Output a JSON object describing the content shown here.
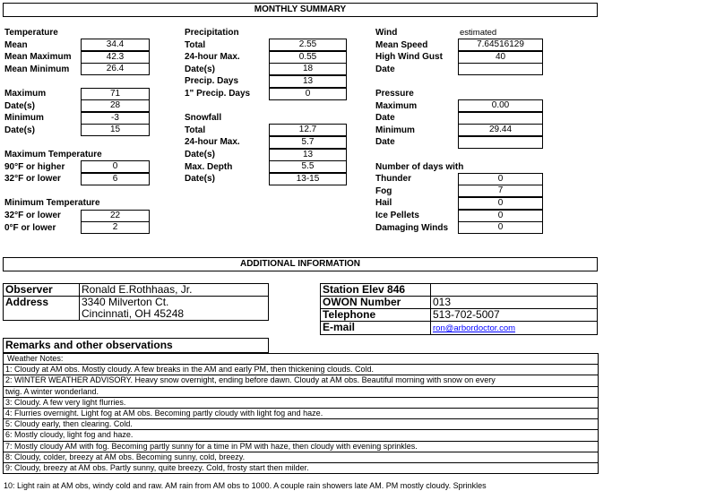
{
  "summary_title": "MONTHLY SUMMARY",
  "columns": [
    {
      "rows": [
        {
          "heading": "Temperature"
        },
        {
          "label": "Mean",
          "value": "34.4"
        },
        {
          "label": "Mean Maximum",
          "value": "42.3"
        },
        {
          "label": "Mean Minimum",
          "value": "26.4"
        },
        null,
        {
          "label": "Maximum",
          "value": "71"
        },
        {
          "label": "Date(s)",
          "value": "28"
        },
        {
          "label": "Minimum",
          "value": "-3"
        },
        {
          "label": "Date(s)",
          "value": "15"
        },
        null,
        {
          "heading": "Maximum Temperature"
        },
        {
          "label": "90°F or higher",
          "value": "0"
        },
        {
          "label": "32°F or lower",
          "value": "6"
        },
        null,
        {
          "heading": "Minimum Temperature"
        },
        {
          "label": "32°F or lower",
          "value": "22"
        },
        {
          "label": "0°F or lower",
          "value": "2"
        }
      ]
    },
    {
      "rows": [
        {
          "heading": "Precipitation"
        },
        {
          "label": "Total",
          "value": "2.55"
        },
        {
          "label": "24-hour Max.",
          "value": "0.55"
        },
        {
          "label": "Date(s)",
          "value": "18"
        },
        {
          "label": "Precip. Days",
          "value": "13"
        },
        {
          "label": "1\" Precip. Days",
          "value": "0"
        },
        null,
        {
          "heading": "Snowfall"
        },
        {
          "label": "Total",
          "value": "12.7"
        },
        {
          "label": "24-hour Max.",
          "value": "5.7"
        },
        {
          "label": "Date(s)",
          "value": "13"
        },
        {
          "label": "Max. Depth",
          "value": "5.5"
        },
        {
          "label": "Date(s)",
          "value": "13-15"
        }
      ]
    },
    {
      "rows": [
        {
          "heading": "Wind",
          "note": "estimated"
        },
        {
          "label": "Mean Speed",
          "value": "7.64516129"
        },
        {
          "label": "High Wind Gust",
          "value": "40"
        },
        {
          "label": "Date",
          "value": ""
        },
        null,
        {
          "heading": "Pressure"
        },
        {
          "label": "Maximum",
          "value": "0.00"
        },
        {
          "label": "Date",
          "value": ""
        },
        {
          "label": "Minimum",
          "value": "29.44"
        },
        {
          "label": "Date",
          "value": ""
        },
        null,
        {
          "heading": "Number of days with"
        },
        {
          "label": "Thunder",
          "value": "0"
        },
        {
          "label": "Fog",
          "value": "7"
        },
        {
          "label": "Hail",
          "value": "0"
        },
        {
          "label": "Ice Pellets",
          "value": "0"
        },
        {
          "label": "Damaging Winds",
          "value": "0"
        }
      ]
    }
  ],
  "additional_title": "ADDITIONAL INFORMATION",
  "observer": {
    "label": "Observer",
    "value": "Ronald E.Rothhaas, Jr.",
    "address_label": "Address",
    "address_line1": "3340 Milverton Ct.",
    "address_line2": "Cincinnati, OH  45248"
  },
  "station": {
    "elev_label": "Station Elev 846",
    "elev_value": "",
    "owon_label": "OWON Number",
    "owon_value": "013",
    "phone_label": "Telephone",
    "phone_value": "513-702-5007",
    "email_label": "E-mail",
    "email_value": "ron@arbordoctor.com"
  },
  "remarks_title": "Remarks and other observations",
  "notes_title": "Weather Notes:",
  "notes": [
    "1: Cloudy at AM obs. Mostly cloudy. A few breaks in the AM and early PM, then thickening clouds. Cold.",
    "2: WINTER WEATHER ADVISORY. Heavy snow overnight, ending before dawn. Cloudy at AM obs. Beautiful morning with snow on every",
    "twig. A winter wonderland.",
    "3: Cloudy. A few very light flurries.",
    "4: Flurries overnight. Light fog at AM obs. Becoming partly cloudy with light fog and haze.",
    "5: Cloudy early, then clearing. Cold.",
    "6: Mostly cloudy, light fog and haze.",
    "7: Mostly cloudy AM with fog. Becoming partly sunny for a time in PM with haze, then cloudy with evening sprinkles.",
    "8: Cloudy, colder, breezy at AM obs. Becoming sunny, cold, breezy.",
    "9: Cloudy, breezy at AM obs. Partly sunny, quite breezy. Cold, frosty start then milder."
  ],
  "last_note": "10: Light rain at AM obs, windy cold and raw. AM rain from AM obs to 1000. A couple rain showers late AM. PM mostly cloudy. Sprinkles"
}
